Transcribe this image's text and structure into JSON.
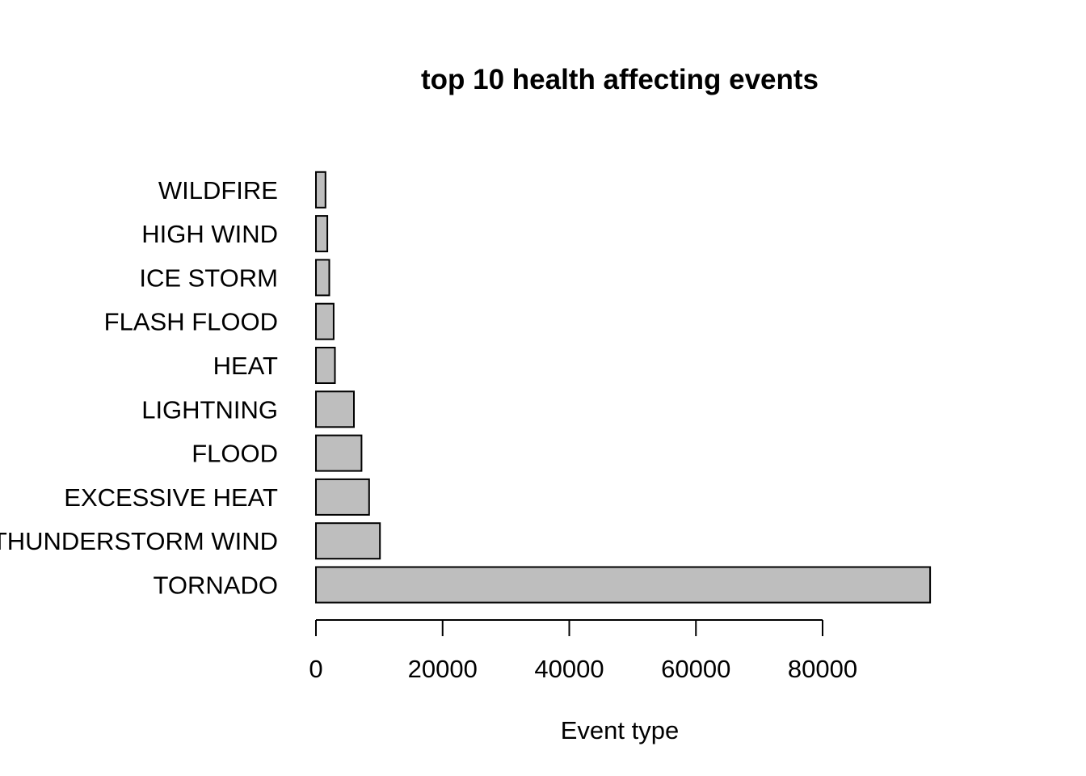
{
  "chart_data": {
    "type": "bar",
    "orientation": "horizontal",
    "title": "top 10 health affecting events",
    "xlabel": "Event type",
    "ylabel": "",
    "categories": [
      "TORNADO",
      "THUNDERSTORM WIND",
      "EXCESSIVE HEAT",
      "FLOOD",
      "LIGHTNING",
      "HEAT",
      "FLASH FLOOD",
      "ICE STORM",
      "HIGH WIND",
      "WILDFIRE"
    ],
    "values": [
      96979,
      10100,
      8400,
      7200,
      6000,
      3000,
      2800,
      2100,
      1800,
      1500
    ],
    "xticks": [
      0,
      20000,
      40000,
      60000,
      80000
    ],
    "xlim": [
      0,
      100000
    ],
    "bar_color": "#bebebe",
    "grid": false,
    "legend": "none"
  }
}
